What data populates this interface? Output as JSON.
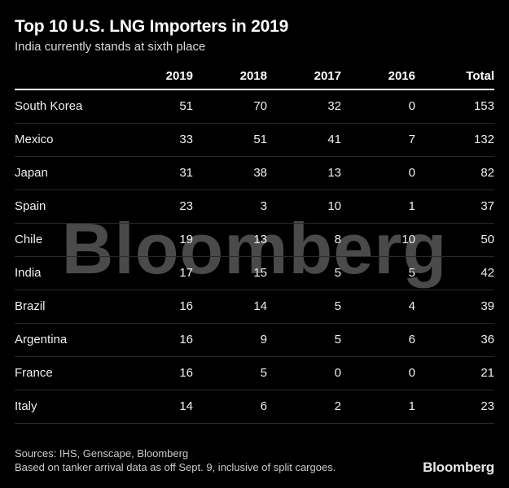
{
  "header": {
    "title": "Top 10 U.S. LNG Importers in 2019",
    "subtitle": "India currently stands at sixth place"
  },
  "table": {
    "columns": [
      "2019",
      "2018",
      "2017",
      "2016",
      "Total"
    ],
    "rows": [
      {
        "country": "South Korea",
        "values": [
          "51",
          "70",
          "32",
          "0",
          "153"
        ]
      },
      {
        "country": "Mexico",
        "values": [
          "33",
          "51",
          "41",
          "7",
          "132"
        ]
      },
      {
        "country": "Japan",
        "values": [
          "31",
          "38",
          "13",
          "0",
          "82"
        ]
      },
      {
        "country": "Spain",
        "values": [
          "23",
          "3",
          "10",
          "1",
          "37"
        ]
      },
      {
        "country": "Chile",
        "values": [
          "19",
          "13",
          "8",
          "10",
          "50"
        ]
      },
      {
        "country": "India",
        "values": [
          "17",
          "15",
          "5",
          "5",
          "42"
        ]
      },
      {
        "country": "Brazil",
        "values": [
          "16",
          "14",
          "5",
          "4",
          "39"
        ]
      },
      {
        "country": "Argentina",
        "values": [
          "16",
          "9",
          "5",
          "6",
          "36"
        ]
      },
      {
        "country": "France",
        "values": [
          "16",
          "5",
          "0",
          "0",
          "21"
        ]
      },
      {
        "country": "Italy",
        "values": [
          "14",
          "6",
          "2",
          "1",
          "23"
        ]
      }
    ]
  },
  "watermark": "Bloomberg",
  "footer": {
    "sources": "Sources: IHS, Genscape, Bloomberg",
    "note": "Based on tanker arrival data as off Sept. 9, inclusive of split cargoes.",
    "brand": "Bloomberg"
  },
  "colors": {
    "background": "#000000",
    "title": "#ffffff",
    "subtitle": "#d9d9d9",
    "table_text": "#f0f0f0",
    "header_rule": "#ffffff",
    "row_divider": "#2a2a2a",
    "watermark": "#4a4a4a",
    "footer_text": "#cccccc",
    "brand": "#e8e8e8"
  },
  "chart_data": {
    "type": "table",
    "title": "Top 10 U.S. LNG Importers in 2019",
    "subtitle": "India currently stands at sixth place",
    "categories": [
      "South Korea",
      "Mexico",
      "Japan",
      "Spain",
      "Chile",
      "India",
      "Brazil",
      "Argentina",
      "France",
      "Italy"
    ],
    "series": [
      {
        "name": "2019",
        "values": [
          51,
          33,
          31,
          23,
          19,
          17,
          16,
          16,
          16,
          14
        ]
      },
      {
        "name": "2018",
        "values": [
          70,
          51,
          38,
          3,
          13,
          15,
          14,
          9,
          5,
          6
        ]
      },
      {
        "name": "2017",
        "values": [
          32,
          41,
          13,
          10,
          8,
          5,
          5,
          5,
          0,
          2
        ]
      },
      {
        "name": "2016",
        "values": [
          0,
          7,
          0,
          1,
          10,
          5,
          4,
          6,
          0,
          1
        ]
      },
      {
        "name": "Total",
        "values": [
          153,
          132,
          82,
          37,
          50,
          42,
          39,
          36,
          21,
          23
        ]
      }
    ],
    "legend_position": "none",
    "grid": "horizontal-dividers",
    "source_note": "Sources: IHS, Genscape, Bloomberg — Based on tanker arrival data as off Sept. 9, inclusive of split cargoes."
  }
}
